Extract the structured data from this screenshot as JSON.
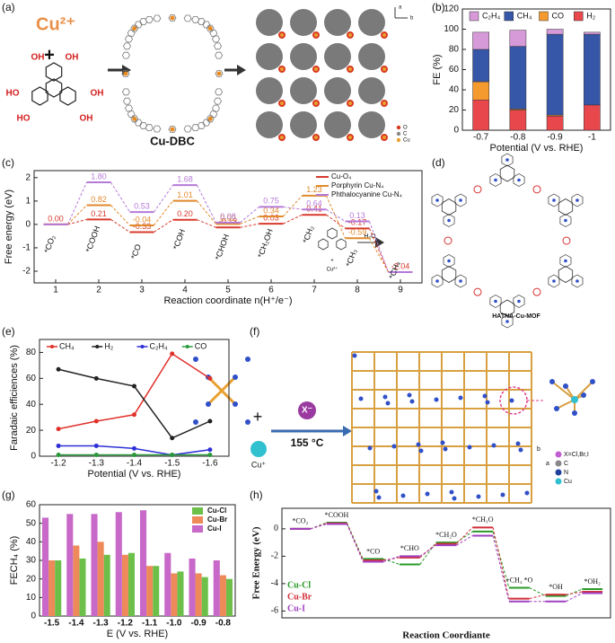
{
  "panel_labels": [
    "(a)",
    "(b)",
    "(c)",
    "(d)",
    "(e)",
    "(f)",
    "(g)",
    "(h)"
  ],
  "diagram_a": {
    "ion": "Cu²⁺",
    "plus": "+",
    "hydroxyls": [
      "OH",
      "OH",
      "HO",
      "OH",
      "HO",
      "OH"
    ],
    "name": "Cu-DBC",
    "atoms": [
      "O",
      "C",
      "Cu"
    ],
    "axes": [
      "a",
      "b"
    ]
  },
  "diagram_d": {
    "ion": "Cu²⁺",
    "plus": "+",
    "solvent": "H₂O",
    "name": "HATNA-Cu-MOF"
  },
  "diagram_f": {
    "anion": "X⁻",
    "temperature": "155 °C",
    "cation": "Cu⁺",
    "plus": "+",
    "atoms": [
      "X=Cl,Br,I",
      "C",
      "N",
      "Cu"
    ],
    "axes": [
      "b",
      "a"
    ]
  },
  "chart_data": [
    {
      "type": "stacked-bar",
      "xlabel": "Potential (V vs. RHE)",
      "ylabel": "FE (%)",
      "legend": "top",
      "categories": [
        "-0.7",
        "-0.8",
        "-0.9",
        "-1"
      ],
      "ylim": [
        0,
        120
      ],
      "yticks": [
        0,
        20,
        40,
        60,
        80,
        100,
        120
      ],
      "series": [
        {
          "name": "C₂H₄",
          "color": "#d79ad8",
          "values": [
            17,
            16,
            5,
            2
          ]
        },
        {
          "name": "CH₄",
          "color": "#3656a8",
          "values": [
            32,
            62,
            80,
            70
          ]
        },
        {
          "name": "CO",
          "color": "#f59a2e",
          "values": [
            18,
            1,
            1,
            0
          ]
        },
        {
          "name": "H₂",
          "color": "#e8474c",
          "values": [
            30,
            20,
            14,
            25
          ]
        }
      ]
    },
    {
      "type": "energy",
      "xlabel": "Reaction coordinate n(H⁺/e⁻)",
      "ylabel": "Free energy (eV)",
      "legend": "top-right",
      "x": [
        1,
        2,
        3,
        4,
        5,
        6,
        7,
        8,
        9
      ],
      "xlim": [
        0.5,
        9.5
      ],
      "xticks": [
        1,
        2,
        3,
        4,
        5,
        6,
        7,
        8,
        9
      ],
      "states": [
        "*CO₂",
        "*COOH",
        "*CO",
        "*COH",
        "*CHOH",
        "*CH₂OH",
        "*CH₂",
        "*CH₃",
        "*CH₄"
      ],
      "ylim": [
        -2.5,
        2.3
      ],
      "yticks": [
        -2,
        -1,
        0,
        1,
        2
      ],
      "series": [
        {
          "name": "Cu-O₄",
          "color": "#d83a2e",
          "values": [
            0,
            0.21,
            -0.33,
            0.2,
            -0.13,
            0.03,
            0.41,
            -0.17,
            -2.04
          ],
          "value_labels": [
            "0.00",
            "0.21",
            "-0.33",
            "0.20",
            "-0.13",
            "0.03",
            "0.41",
            "-0.17",
            "-2.04"
          ]
        },
        {
          "name": "Porphyrin Cu-N₄",
          "color": "#e08a2c",
          "values": [
            0,
            0.82,
            -0.04,
            1.01,
            0.02,
            0.34,
            1.23,
            -0.59,
            -2.04
          ],
          "value_labels": [
            null,
            "0.82",
            "-0.04",
            "1.01",
            "0.02",
            "0.34",
            "1.23",
            "-0.59",
            null
          ]
        },
        {
          "name": "Phthalocyanine Cu-N₄",
          "color": "#b57ad8",
          "values": [
            0,
            1.8,
            0.53,
            1.68,
            0.08,
            0.75,
            0.64,
            0.13,
            -2.04
          ],
          "value_labels": [
            null,
            "1.80",
            "0.53",
            "1.68",
            "0.08",
            "0.75",
            "0.64",
            "0.13",
            null
          ]
        }
      ]
    },
    {
      "type": "line",
      "xlabel": "Potential (V vs. RHE)",
      "ylabel": "Faradaic efficiences (%)",
      "legend": "top",
      "categories": [
        "-1.2",
        "-1.3",
        "-1.4",
        "-1.5",
        "-1.6"
      ],
      "ylim": [
        0,
        90
      ],
      "yticks": [
        0,
        20,
        40,
        60,
        80
      ],
      "series": [
        {
          "name": "CH₄",
          "color": "#e0302a",
          "values": [
            21,
            27,
            32,
            79,
            60
          ]
        },
        {
          "name": "H₂",
          "color": "#222222",
          "values": [
            67,
            60,
            54,
            14,
            27
          ]
        },
        {
          "name": "C₂H₄",
          "color": "#2f2fd8",
          "values": [
            8,
            8,
            6,
            1,
            5
          ]
        },
        {
          "name": "CO",
          "color": "#2a9a3a",
          "values": [
            1,
            1,
            1,
            1,
            1
          ]
        }
      ]
    },
    {
      "type": "bar",
      "xlabel": "E (V vs. RHE)",
      "ylabel": "FECH₄ (%)",
      "legend": "top-right",
      "categories": [
        "-1.5",
        "-1.4",
        "-1.3",
        "-1.2",
        "-1.1",
        "-1.0",
        "-0.9",
        "-0.8"
      ],
      "ylim": [
        0,
        60
      ],
      "yticks": [
        0,
        10,
        20,
        30,
        40,
        50,
        60
      ],
      "series": [
        {
          "name": "Cu-Cl",
          "color": "#6cc04a",
          "values": [
            30,
            31,
            33,
            34,
            27,
            24,
            21,
            20
          ]
        },
        {
          "name": "Cu-Br",
          "color": "#ee8a5a",
          "values": [
            30,
            38,
            40,
            33,
            27,
            23,
            23,
            22
          ]
        },
        {
          "name": "Cu-I",
          "color": "#c868c8",
          "values": [
            53,
            55,
            55,
            56,
            57,
            34,
            31,
            30
          ]
        }
      ]
    },
    {
      "type": "energy",
      "xlabel": "Reaction Coordiante",
      "ylabel": "Free Energy (eV)",
      "legend": "bottom-left",
      "states": [
        "*CO₂",
        "*COOH",
        "*CO",
        "*CHO",
        "*CH₂O",
        "*CH₃O",
        "+CH₃ *O",
        "*OH",
        "*OH₂"
      ],
      "ylim": [
        -6.5,
        1.5
      ],
      "yticks": [
        -6,
        -4,
        -2,
        0
      ],
      "series": [
        {
          "name": "Cu-Cl",
          "color": "#2a9a2a",
          "values": [
            0,
            0.45,
            -2.2,
            -2.6,
            -1.0,
            -0.2,
            -4.3,
            -4.9,
            -4.4
          ]
        },
        {
          "name": "Cu-Br",
          "color": "#d0303a",
          "values": [
            0,
            0.4,
            -2.3,
            -2.1,
            -1.1,
            0.1,
            -5.1,
            -4.8,
            -4.6
          ]
        },
        {
          "name": "Cu-I",
          "color": "#a040c0",
          "values": [
            0,
            0.35,
            -2.4,
            -2.0,
            -1.2,
            -0.5,
            -5.3,
            -5.3,
            -4.7
          ]
        }
      ]
    }
  ]
}
